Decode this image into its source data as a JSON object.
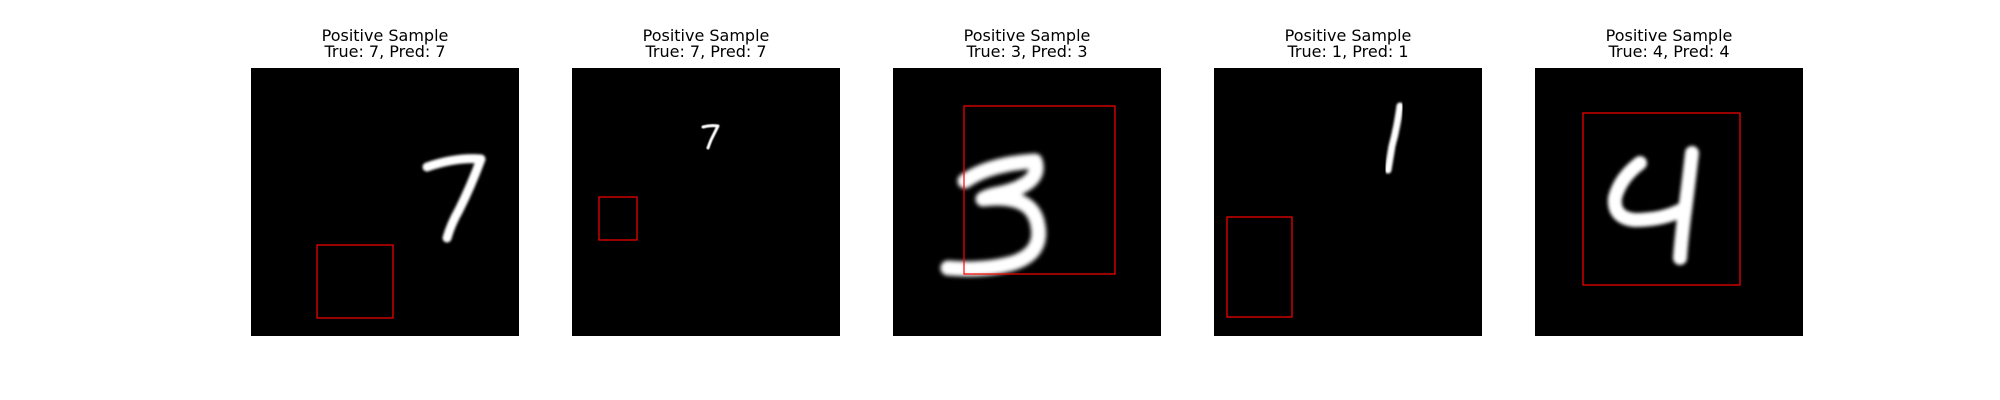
{
  "panels": [
    {
      "title": "Positive Sample",
      "subtitle": "True: 7, Pred: 7",
      "digit": "7",
      "box_color": "#ff0000"
    },
    {
      "title": "Positive Sample",
      "subtitle": "True: 7, Pred: 7",
      "digit": "7",
      "box_color": "#ff0000"
    },
    {
      "title": "Positive Sample",
      "subtitle": "True: 3, Pred: 3",
      "digit": "3",
      "box_color": "#ff0000"
    },
    {
      "title": "Positive Sample",
      "subtitle": "True: 1, Pred: 1",
      "digit": "1",
      "box_color": "#ff0000"
    },
    {
      "title": "Positive Sample",
      "subtitle": "True: 4, Pred: 4",
      "digit": "4",
      "box_color": "#ff0000"
    }
  ]
}
